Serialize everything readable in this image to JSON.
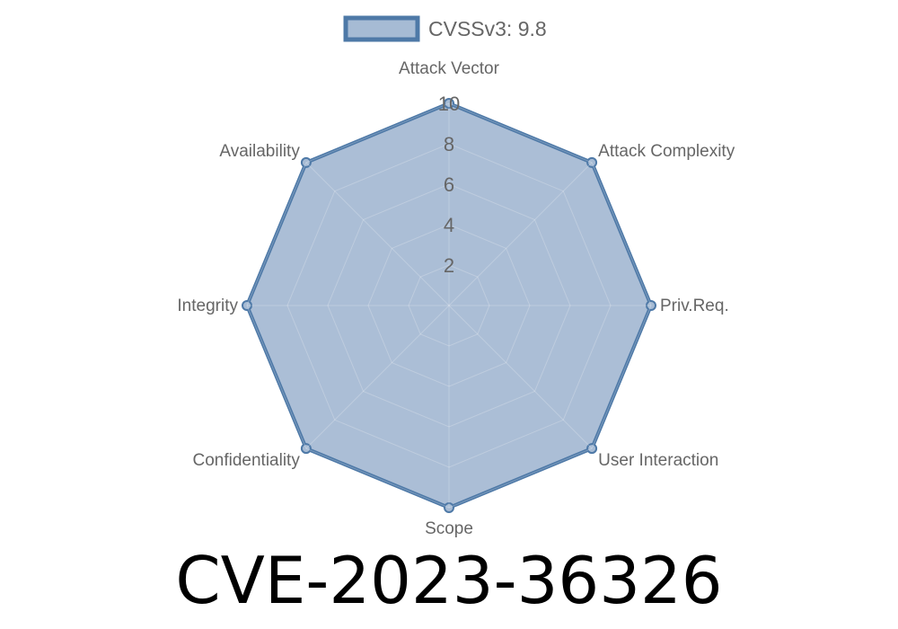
{
  "chart_data": {
    "type": "radar",
    "axes": [
      "Attack Vector",
      "Attack Complexity",
      "Priv.Req.",
      "User Interaction",
      "Scope",
      "Confidentiality",
      "Integrity",
      "Availability"
    ],
    "series": [
      {
        "name": "CVSSv3: 9.8",
        "values": [
          10,
          10,
          10,
          10,
          10,
          10,
          10,
          10
        ]
      }
    ],
    "rlim": [
      0,
      10
    ],
    "ticks": [
      2,
      4,
      6,
      8,
      10
    ],
    "legend_position": "top",
    "grid": true,
    "colors": {
      "line": "#4e79a7",
      "fill": "#a6bbd4",
      "grid": "#c8c8c8",
      "text": "#666666"
    }
  },
  "title": "CVE-2023-36326"
}
